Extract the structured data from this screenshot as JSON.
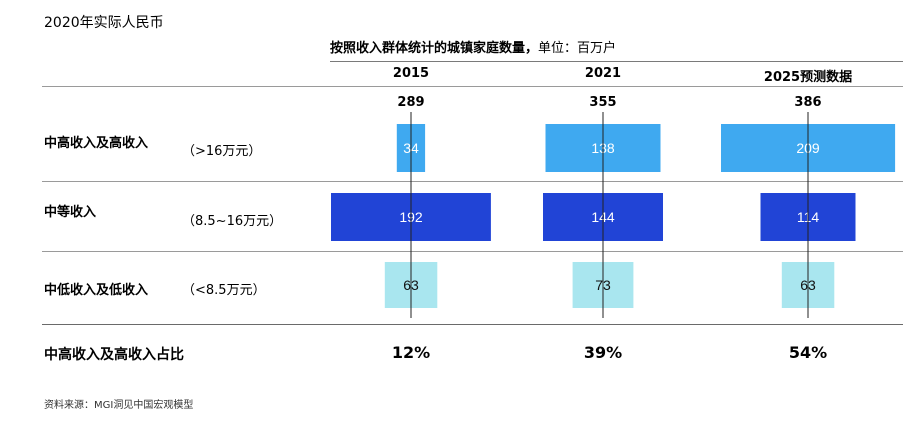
{
  "header": {
    "currency_note": "2020年实际人民币"
  },
  "chart_data": {
    "type": "bar",
    "title": "按照收入群体统计的城镇家庭数量，",
    "unit_note": "单位：百万户",
    "categories": [
      "2015",
      "2021",
      "2025预测数据"
    ],
    "totals": [
      "289",
      "355",
      "386"
    ],
    "series": [
      {
        "name": "中高收入及高收入",
        "range": "（>16万元）",
        "values": [
          34,
          138,
          209
        ],
        "color": "#3fa9f0",
        "label_color": "#ffffff"
      },
      {
        "name": "中等收入",
        "range": "（8.5~16万元）",
        "values": [
          192,
          144,
          114
        ],
        "color": "#2144d6",
        "label_color": "#ffffff"
      },
      {
        "name": "中低收入及低收入",
        "range": "（<8.5万元）",
        "values": [
          63,
          73,
          63
        ],
        "color": "#a9e6ef",
        "label_color": "#111111"
      }
    ],
    "share": {
      "label": "中高收入及高收入占比",
      "values": [
        "12%",
        "39%",
        "54%"
      ]
    }
  },
  "footer": {
    "source": "资料来源：MGI洞见中国宏观模型"
  }
}
